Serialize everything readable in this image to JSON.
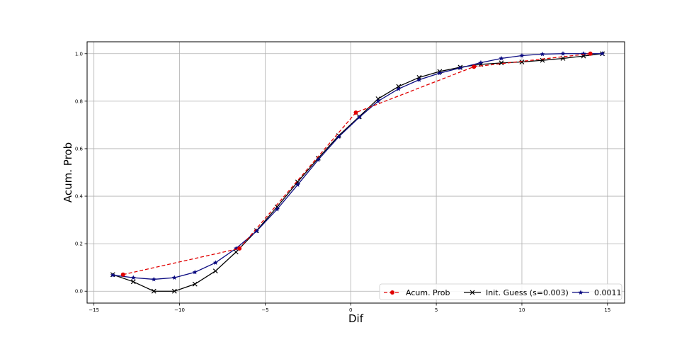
{
  "chart_data": {
    "type": "line",
    "title": "",
    "xlabel": "Dif",
    "ylabel": "Acum. Prob",
    "xlim": [
      -15.4,
      16.0
    ],
    "ylim": [
      -0.05,
      1.05
    ],
    "xticks": [
      -15,
      -10,
      -5,
      0,
      5,
      10,
      15
    ],
    "xtick_labels": [
      "−15",
      "−10",
      "−5",
      "0",
      "5",
      "10",
      "15"
    ],
    "yticks": [
      0.0,
      0.2,
      0.4,
      0.6,
      0.8,
      1.0
    ],
    "ytick_labels": [
      "0.0",
      "0.2",
      "0.4",
      "0.6",
      "0.8",
      "1.0"
    ],
    "grid": true,
    "legend_position": "lower-right",
    "series": [
      {
        "name": "Acum. Prob",
        "color": "#e00000",
        "linestyle": "dashed",
        "marker": "circle",
        "x": [
          -13.3,
          -6.5,
          0.3,
          7.2,
          14.0
        ],
        "y": [
          0.07,
          0.18,
          0.752,
          0.945,
          1.0
        ]
      },
      {
        "name": "Init. Guess (s=0.003)",
        "color": "#000000",
        "linestyle": "solid",
        "marker": "x",
        "x": [
          -13.9,
          -12.7,
          -11.5,
          -10.3,
          -9.1,
          -7.9,
          -6.7,
          -5.5,
          -4.3,
          -3.1,
          -1.9,
          -0.7,
          0.5,
          1.6,
          2.8,
          4.0,
          5.2,
          6.4,
          7.6,
          8.8,
          10.0,
          11.2,
          12.4,
          13.6,
          14.7
        ],
        "y": [
          0.07,
          0.04,
          0.0,
          0.0,
          0.03,
          0.085,
          0.165,
          0.255,
          0.355,
          0.46,
          0.56,
          0.655,
          0.735,
          0.81,
          0.862,
          0.9,
          0.925,
          0.943,
          0.955,
          0.961,
          0.965,
          0.972,
          0.98,
          0.99,
          1.0
        ]
      },
      {
        "name": "0.0011",
        "color": "#0a0a80",
        "linestyle": "solid",
        "marker": "star",
        "x": [
          -13.9,
          -12.7,
          -11.5,
          -10.3,
          -9.1,
          -7.9,
          -6.7,
          -5.5,
          -4.3,
          -3.1,
          -1.9,
          -0.7,
          0.5,
          1.6,
          2.8,
          4.0,
          5.2,
          6.4,
          7.6,
          8.8,
          10.0,
          11.2,
          12.4,
          13.6,
          14.7
        ],
        "y": [
          0.068,
          0.057,
          0.05,
          0.057,
          0.08,
          0.12,
          0.18,
          0.253,
          0.345,
          0.448,
          0.553,
          0.65,
          0.732,
          0.8,
          0.852,
          0.89,
          0.918,
          0.94,
          0.962,
          0.98,
          0.992,
          0.998,
          1.0,
          1.0,
          1.0
        ]
      }
    ]
  }
}
